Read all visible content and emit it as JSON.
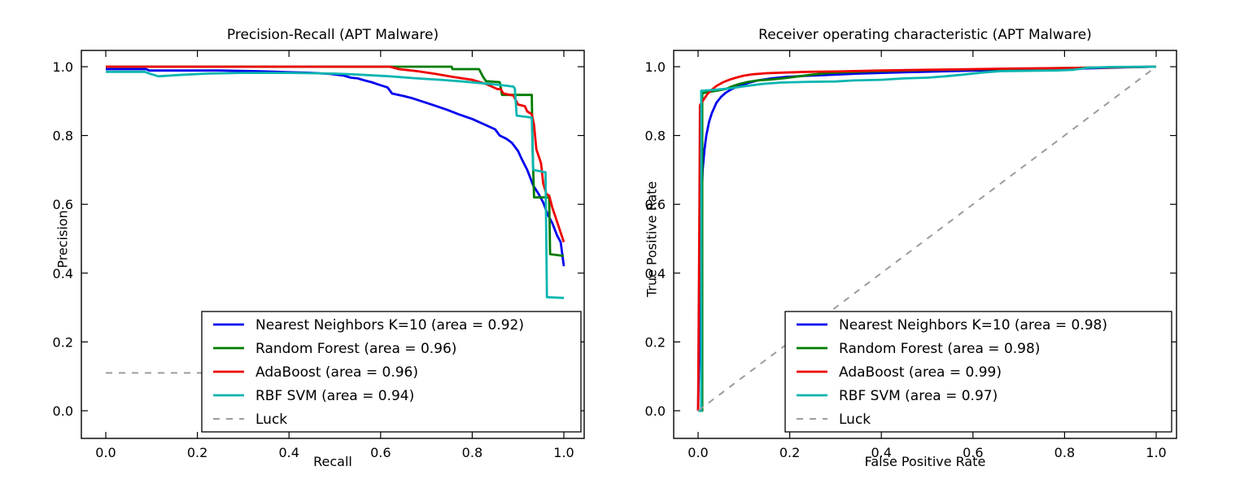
{
  "figure": {
    "background": "#ffffff",
    "text_color": "#000000",
    "spine_color": "#000000"
  },
  "chart_data": [
    {
      "id": "pr-chart",
      "type": "line",
      "title": "Precision-Recall (APT Malware)",
      "xlabel": "Recall",
      "ylabel": "Precision",
      "xlim": [
        -0.05,
        1.05
      ],
      "ylim": [
        -0.08,
        1.05
      ],
      "grid": false,
      "legend_position": "lower right",
      "xticks": [
        0.0,
        0.2,
        0.4,
        0.6,
        0.8,
        1.0
      ],
      "yticks": [
        0.0,
        0.2,
        0.4,
        0.6,
        0.8,
        1.0
      ],
      "xtick_labels": [
        "0.0",
        "0.2",
        "0.4",
        "0.6",
        "0.8",
        "1.0"
      ],
      "ytick_labels": [
        "0.0",
        "0.2",
        "0.4",
        "0.6",
        "0.8",
        "1.0"
      ],
      "series": [
        {
          "id": "nearest-neighbors",
          "name": "Nearest Neighbors K=10 (area = 0.92)",
          "color": "#0000ee",
          "dash": null,
          "points": [
            [
              0,
              0.993
            ],
            [
              0.088,
              0.993
            ],
            [
              0.095,
              0.989
            ],
            [
              0.25,
              0.989
            ],
            [
              0.33,
              0.987
            ],
            [
              0.4,
              0.984
            ],
            [
              0.45,
              0.982
            ],
            [
              0.49,
              0.979
            ],
            [
              0.52,
              0.974
            ],
            [
              0.535,
              0.968
            ],
            [
              0.55,
              0.966
            ],
            [
              0.565,
              0.96
            ],
            [
              0.58,
              0.955
            ],
            [
              0.6,
              0.946
            ],
            [
              0.615,
              0.94
            ],
            [
              0.625,
              0.922
            ],
            [
              0.65,
              0.915
            ],
            [
              0.67,
              0.908
            ],
            [
              0.7,
              0.895
            ],
            [
              0.72,
              0.886
            ],
            [
              0.745,
              0.875
            ],
            [
              0.77,
              0.862
            ],
            [
              0.8,
              0.848
            ],
            [
              0.825,
              0.833
            ],
            [
              0.85,
              0.818
            ],
            [
              0.86,
              0.8
            ],
            [
              0.875,
              0.79
            ],
            [
              0.887,
              0.778
            ],
            [
              0.9,
              0.755
            ],
            [
              0.906,
              0.737
            ],
            [
              0.92,
              0.7
            ],
            [
              0.933,
              0.655
            ],
            [
              0.945,
              0.63
            ],
            [
              0.955,
              0.605
            ],
            [
              0.965,
              0.57
            ],
            [
              0.975,
              0.545
            ],
            [
              0.985,
              0.51
            ],
            [
              0.993,
              0.49
            ],
            [
              1.0,
              0.42
            ]
          ]
        },
        {
          "id": "random-forest",
          "name": "Random Forest (area = 0.96)",
          "color": "#007c00",
          "dash": null,
          "points": [
            [
              0,
              1.0
            ],
            [
              0.755,
              1.0
            ],
            [
              0.757,
              0.993
            ],
            [
              0.815,
              0.993
            ],
            [
              0.823,
              0.972
            ],
            [
              0.83,
              0.958
            ],
            [
              0.86,
              0.955
            ],
            [
              0.865,
              0.918
            ],
            [
              0.93,
              0.918
            ],
            [
              0.932,
              0.75
            ],
            [
              0.935,
              0.62
            ],
            [
              0.968,
              0.62
            ],
            [
              0.97,
              0.455
            ],
            [
              1.0,
              0.45
            ]
          ]
        },
        {
          "id": "adaboost",
          "name": "AdaBoost (area = 0.96)",
          "color": "#ee0000",
          "dash": null,
          "points": [
            [
              0,
              1.0
            ],
            [
              0.62,
              1.0
            ],
            [
              0.64,
              0.993
            ],
            [
              0.68,
              0.987
            ],
            [
              0.72,
              0.979
            ],
            [
              0.76,
              0.97
            ],
            [
              0.8,
              0.962
            ],
            [
              0.83,
              0.95
            ],
            [
              0.845,
              0.941
            ],
            [
              0.855,
              0.935
            ],
            [
              0.862,
              0.935
            ],
            [
              0.868,
              0.922
            ],
            [
              0.89,
              0.916
            ],
            [
              0.9,
              0.89
            ],
            [
              0.915,
              0.885
            ],
            [
              0.92,
              0.87
            ],
            [
              0.93,
              0.862
            ],
            [
              0.935,
              0.83
            ],
            [
              0.94,
              0.76
            ],
            [
              0.95,
              0.72
            ],
            [
              0.955,
              0.66
            ],
            [
              0.962,
              0.63
            ],
            [
              0.968,
              0.625
            ],
            [
              0.975,
              0.59
            ],
            [
              0.985,
              0.55
            ],
            [
              1.0,
              0.49
            ]
          ]
        },
        {
          "id": "rbf-svm",
          "name": "RBF SVM (area = 0.94)",
          "color": "#0ab5b0",
          "dash": null,
          "points": [
            [
              0,
              0.985
            ],
            [
              0.085,
              0.985
            ],
            [
              0.1,
              0.978
            ],
            [
              0.115,
              0.972
            ],
            [
              0.16,
              0.976
            ],
            [
              0.22,
              0.98
            ],
            [
              0.3,
              0.982
            ],
            [
              0.4,
              0.982
            ],
            [
              0.5,
              0.98
            ],
            [
              0.55,
              0.977
            ],
            [
              0.62,
              0.972
            ],
            [
              0.68,
              0.966
            ],
            [
              0.73,
              0.962
            ],
            [
              0.78,
              0.957
            ],
            [
              0.82,
              0.952
            ],
            [
              0.86,
              0.947
            ],
            [
              0.89,
              0.942
            ],
            [
              0.893,
              0.936
            ],
            [
              0.897,
              0.858
            ],
            [
              0.93,
              0.852
            ],
            [
              0.933,
              0.7
            ],
            [
              0.96,
              0.693
            ],
            [
              0.963,
              0.33
            ],
            [
              1.0,
              0.328
            ]
          ]
        },
        {
          "id": "luck",
          "name": "Luck",
          "color": "#9c9c9c",
          "dash": "8,8",
          "points": [
            [
              0,
              0.11
            ],
            [
              1.0,
              0.11
            ]
          ]
        }
      ]
    },
    {
      "id": "roc-chart",
      "type": "line",
      "title": "Receiver operating characteristic (APT Malware)",
      "xlabel": "False Positive Rate",
      "ylabel": "True Positive Rate",
      "xlim": [
        -0.05,
        1.05
      ],
      "ylim": [
        -0.08,
        1.05
      ],
      "grid": false,
      "legend_position": "lower right",
      "xticks": [
        0.0,
        0.2,
        0.4,
        0.6,
        0.8,
        1.0
      ],
      "yticks": [
        0.0,
        0.2,
        0.4,
        0.6,
        0.8,
        1.0
      ],
      "xtick_labels": [
        "0.0",
        "0.2",
        "0.4",
        "0.6",
        "0.8",
        "1.0"
      ],
      "ytick_labels": [
        "0.0",
        "0.2",
        "0.4",
        "0.6",
        "0.8",
        "1.0"
      ],
      "series": [
        {
          "id": "nearest-neighbors",
          "name": "Nearest Neighbors K=10 (area = 0.98)",
          "color": "#0000ee",
          "dash": null,
          "points": [
            [
              0,
              0
            ],
            [
              0.004,
              0.3
            ],
            [
              0.006,
              0.5
            ],
            [
              0.008,
              0.62
            ],
            [
              0.01,
              0.7
            ],
            [
              0.014,
              0.76
            ],
            [
              0.018,
              0.8
            ],
            [
              0.024,
              0.84
            ],
            [
              0.03,
              0.865
            ],
            [
              0.04,
              0.895
            ],
            [
              0.05,
              0.912
            ],
            [
              0.06,
              0.924
            ],
            [
              0.075,
              0.936
            ],
            [
              0.09,
              0.944
            ],
            [
              0.11,
              0.953
            ],
            [
              0.13,
              0.96
            ],
            [
              0.16,
              0.966
            ],
            [
              0.19,
              0.97
            ],
            [
              0.23,
              0.973
            ],
            [
              0.28,
              0.976
            ],
            [
              0.35,
              0.98
            ],
            [
              0.45,
              0.984
            ],
            [
              0.55,
              0.987
            ],
            [
              0.65,
              0.99
            ],
            [
              0.75,
              0.992
            ],
            [
              0.85,
              0.995
            ],
            [
              0.93,
              0.998
            ],
            [
              1.0,
              1.0
            ]
          ]
        },
        {
          "id": "random-forest",
          "name": "Random Forest (area = 0.98)",
          "color": "#007c00",
          "dash": null,
          "points": [
            [
              0,
              0
            ],
            [
              0.009,
              0
            ],
            [
              0.009,
              0.923
            ],
            [
              0.02,
              0.926
            ],
            [
              0.04,
              0.93
            ],
            [
              0.06,
              0.935
            ],
            [
              0.075,
              0.943
            ],
            [
              0.09,
              0.95
            ],
            [
              0.11,
              0.956
            ],
            [
              0.13,
              0.96
            ],
            [
              0.16,
              0.963
            ],
            [
              0.19,
              0.967
            ],
            [
              0.22,
              0.972
            ],
            [
              0.25,
              0.977
            ],
            [
              0.28,
              0.981
            ],
            [
              0.32,
              0.984
            ],
            [
              0.4,
              0.987
            ],
            [
              0.5,
              0.99
            ],
            [
              0.6,
              0.992
            ],
            [
              0.7,
              0.994
            ],
            [
              0.8,
              0.996
            ],
            [
              0.9,
              0.998
            ],
            [
              1.0,
              1.0
            ]
          ]
        },
        {
          "id": "adaboost",
          "name": "AdaBoost (area = 0.99)",
          "color": "#ee0000",
          "dash": null,
          "points": [
            [
              0,
              0
            ],
            [
              0.003,
              0.6
            ],
            [
              0.004,
              0.888
            ],
            [
              0.01,
              0.9
            ],
            [
              0.015,
              0.91
            ],
            [
              0.02,
              0.92
            ],
            [
              0.03,
              0.933
            ],
            [
              0.04,
              0.944
            ],
            [
              0.055,
              0.955
            ],
            [
              0.07,
              0.963
            ],
            [
              0.085,
              0.969
            ],
            [
              0.1,
              0.974
            ],
            [
              0.12,
              0.978
            ],
            [
              0.15,
              0.981
            ],
            [
              0.19,
              0.983
            ],
            [
              0.24,
              0.985
            ],
            [
              0.3,
              0.986
            ],
            [
              0.4,
              0.989
            ],
            [
              0.5,
              0.991
            ],
            [
              0.6,
              0.993
            ],
            [
              0.7,
              0.995
            ],
            [
              0.8,
              0.996
            ],
            [
              0.9,
              0.998
            ],
            [
              1.0,
              1.0
            ]
          ]
        },
        {
          "id": "rbf-svm",
          "name": "RBF SVM (area = 0.97)",
          "color": "#0ab5b0",
          "dash": null,
          "points": [
            [
              0,
              0
            ],
            [
              0.007,
              0
            ],
            [
              0.007,
              0.93
            ],
            [
              0.04,
              0.933
            ],
            [
              0.07,
              0.937
            ],
            [
              0.1,
              0.943
            ],
            [
              0.14,
              0.95
            ],
            [
              0.18,
              0.954
            ],
            [
              0.24,
              0.956
            ],
            [
              0.3,
              0.957
            ],
            [
              0.34,
              0.96
            ],
            [
              0.4,
              0.962
            ],
            [
              0.45,
              0.966
            ],
            [
              0.5,
              0.968
            ],
            [
              0.54,
              0.972
            ],
            [
              0.58,
              0.977
            ],
            [
              0.62,
              0.983
            ],
            [
              0.66,
              0.987
            ],
            [
              0.72,
              0.988
            ],
            [
              0.78,
              0.989
            ],
            [
              0.82,
              0.991
            ],
            [
              0.85,
              0.997
            ],
            [
              0.9,
              0.999
            ],
            [
              1.0,
              1.0
            ]
          ]
        },
        {
          "id": "luck",
          "name": "Luck",
          "color": "#9c9c9c",
          "dash": "8,8",
          "points": [
            [
              0,
              0
            ],
            [
              1.0,
              1.0
            ]
          ]
        }
      ]
    }
  ]
}
